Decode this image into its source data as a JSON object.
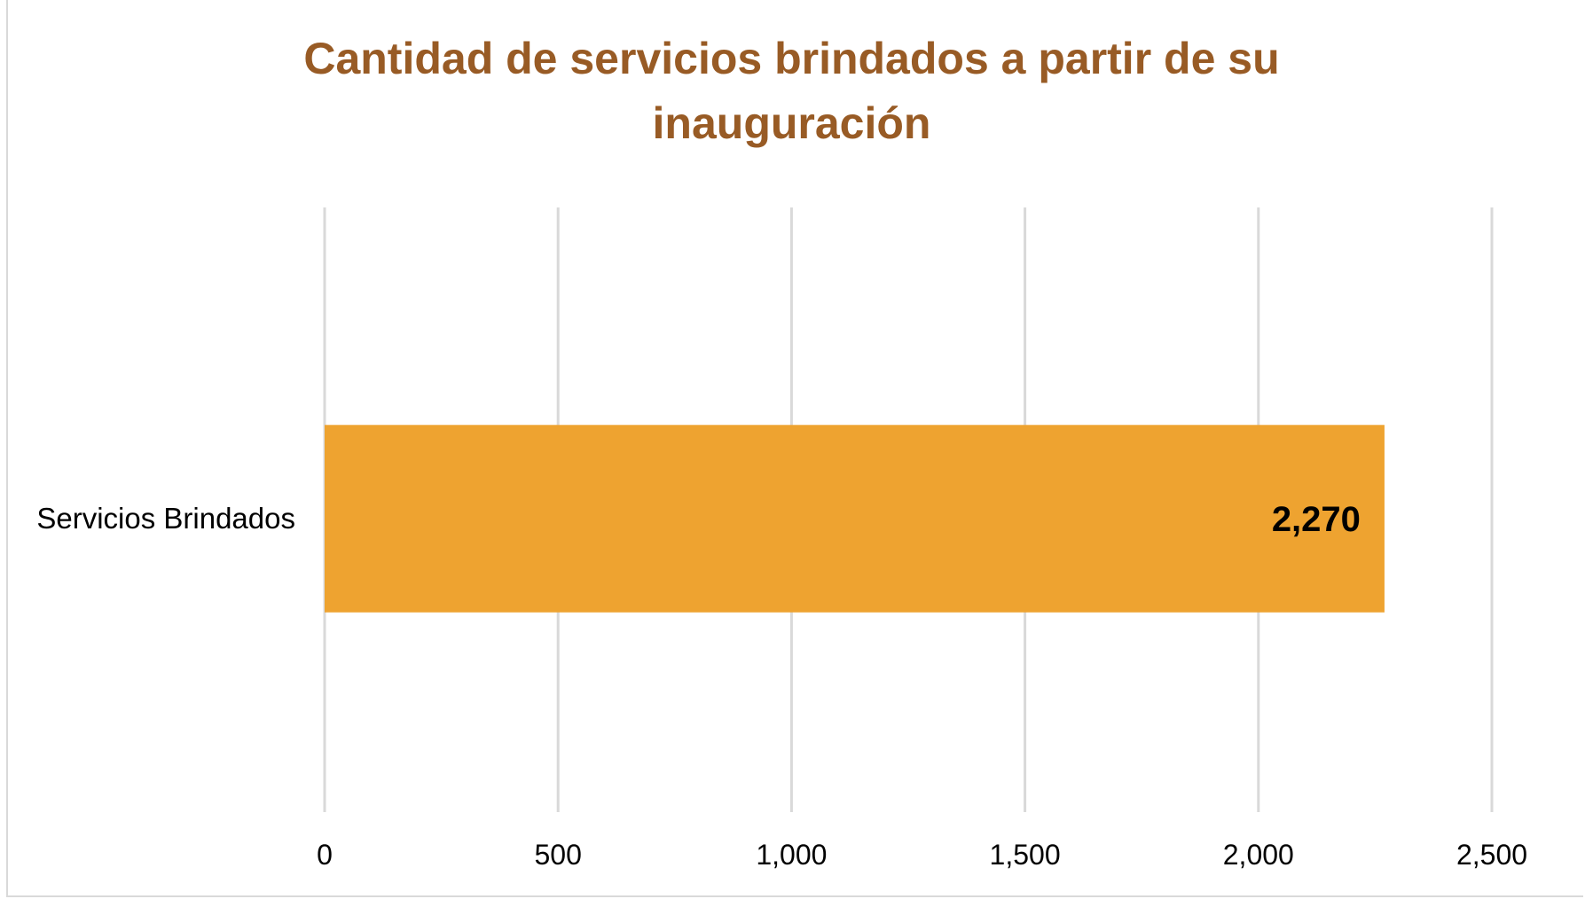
{
  "chart_data": {
    "type": "bar",
    "orientation": "horizontal",
    "title": "Cantidad de servicios brindados a partir de su inauguración",
    "categories": [
      "Servicios Brindados"
    ],
    "values": [
      2270
    ],
    "data_labels": [
      "2,270"
    ],
    "xlim": [
      0,
      2500
    ],
    "x_ticks": [
      0,
      500,
      1000,
      1500,
      2000,
      2500
    ],
    "x_tick_labels": [
      "0",
      "500",
      "1,000",
      "1,500",
      "2,000",
      "2,500"
    ],
    "xlabel": "",
    "ylabel": "",
    "grid": "vertical",
    "legend": "none",
    "colors": {
      "bar": "#eea330",
      "title": "#985b25",
      "grid": "#d9d9d9"
    }
  }
}
